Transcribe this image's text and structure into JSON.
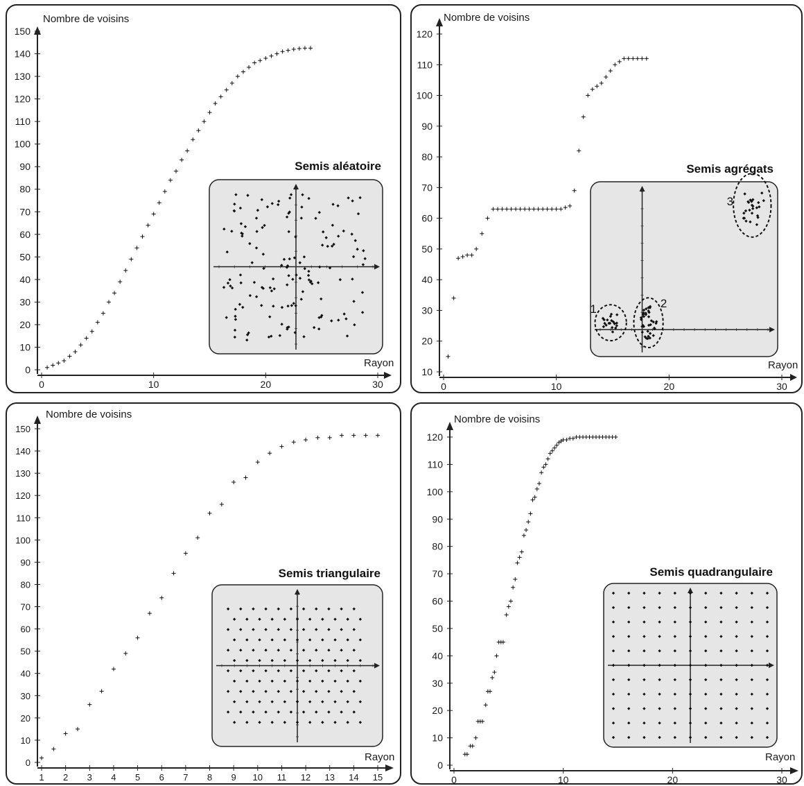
{
  "chart_data": [
    {
      "type": "scatter",
      "ylabel": "Nombre de voisins",
      "xlabel": "Rayon",
      "xlim": [
        0,
        30
      ],
      "ylim": [
        0,
        150
      ],
      "xticks": [
        "0",
        "10",
        "20",
        "30"
      ],
      "yticks": [
        "0",
        "10",
        "20",
        "30",
        "40",
        "50",
        "60",
        "70",
        "80",
        "90",
        "100",
        "110",
        "120",
        "130",
        "140",
        "150"
      ],
      "inset": {
        "title": "Semis aléatoire",
        "pattern": "random",
        "x_range": [
          -10,
          10
        ],
        "y_range": [
          -10,
          10
        ]
      },
      "series": [
        {
          "points": [
            [
              0.5,
              1
            ],
            [
              1,
              2
            ],
            [
              1.5,
              3
            ],
            [
              2,
              4
            ],
            [
              2.5,
              6
            ],
            [
              3,
              8
            ],
            [
              3.5,
              11
            ],
            [
              4,
              14
            ],
            [
              4.5,
              17
            ],
            [
              5,
              21
            ],
            [
              5.5,
              25
            ],
            [
              6,
              30
            ],
            [
              6.5,
              34
            ],
            [
              7,
              39
            ],
            [
              7.5,
              44
            ],
            [
              8,
              49
            ],
            [
              8.5,
              54
            ],
            [
              9,
              59
            ],
            [
              9.5,
              64
            ],
            [
              10,
              69
            ],
            [
              10.5,
              74
            ],
            [
              11,
              79
            ],
            [
              11.5,
              84
            ],
            [
              12,
              88
            ],
            [
              12.5,
              93
            ],
            [
              13,
              97
            ],
            [
              13.5,
              102
            ],
            [
              14,
              106
            ],
            [
              14.5,
              110
            ],
            [
              15,
              114
            ],
            [
              15.5,
              118
            ],
            [
              16,
              121
            ],
            [
              16.5,
              124
            ],
            [
              17,
              127
            ],
            [
              17.5,
              130
            ],
            [
              18,
              132
            ],
            [
              18.5,
              134
            ],
            [
              19,
              136
            ],
            [
              19.5,
              137
            ],
            [
              20,
              138
            ],
            [
              20.5,
              139
            ],
            [
              21,
              140
            ],
            [
              21.5,
              141
            ],
            [
              22,
              141.5
            ],
            [
              22.5,
              142
            ],
            [
              23,
              142.3
            ],
            [
              23.5,
              142.5
            ],
            [
              24,
              142.5
            ]
          ]
        }
      ]
    },
    {
      "type": "scatter",
      "ylabel": "Nombre de voisins",
      "xlabel": "Rayon",
      "xlim": [
        0,
        30
      ],
      "ylim": [
        10,
        120
      ],
      "xticks": [
        "0",
        "10",
        "20",
        "30"
      ],
      "yticks": [
        "10",
        "20",
        "30",
        "40",
        "50",
        "60",
        "70",
        "80",
        "90",
        "100",
        "110",
        "120"
      ],
      "inset": {
        "title": "Semis agrégats",
        "pattern": "clusters",
        "x_range": [
          -4,
          12
        ],
        "y_range": [
          -1,
          8
        ],
        "cluster_labels": [
          "1",
          "2",
          "3"
        ]
      },
      "series": [
        {
          "points": [
            [
              0.4,
              15
            ],
            [
              0.9,
              34
            ],
            [
              1.3,
              47
            ],
            [
              1.7,
              47.5
            ],
            [
              2.1,
              48
            ],
            [
              2.5,
              48
            ],
            [
              2.9,
              50
            ],
            [
              3.4,
              55
            ],
            [
              3.9,
              60
            ],
            [
              4.4,
              63
            ],
            [
              4.8,
              63
            ],
            [
              5.2,
              63
            ],
            [
              5.6,
              63
            ],
            [
              6.0,
              63
            ],
            [
              6.4,
              63
            ],
            [
              6.8,
              63
            ],
            [
              7.2,
              63
            ],
            [
              7.6,
              63
            ],
            [
              8.0,
              63
            ],
            [
              8.4,
              63
            ],
            [
              8.8,
              63
            ],
            [
              9.2,
              63
            ],
            [
              9.6,
              63
            ],
            [
              10.0,
              63
            ],
            [
              10.4,
              63
            ],
            [
              10.8,
              63.5
            ],
            [
              11.2,
              64
            ],
            [
              11.6,
              69
            ],
            [
              12.0,
              82
            ],
            [
              12.4,
              93
            ],
            [
              12.8,
              100
            ],
            [
              13.2,
              102
            ],
            [
              13.6,
              103
            ],
            [
              14.0,
              104
            ],
            [
              14.4,
              106
            ],
            [
              14.8,
              108
            ],
            [
              15.2,
              110
            ],
            [
              15.6,
              111
            ],
            [
              16.0,
              112
            ],
            [
              16.4,
              112
            ],
            [
              16.8,
              112
            ],
            [
              17.2,
              112
            ],
            [
              17.6,
              112
            ],
            [
              18.0,
              112
            ]
          ]
        }
      ]
    },
    {
      "type": "scatter",
      "ylabel": "Nombre de voisins",
      "xlabel": "Rayon",
      "xlim": [
        1,
        15
      ],
      "ylim": [
        0,
        150
      ],
      "xticks": [
        "1",
        "2",
        "3",
        "4",
        "5",
        "6",
        "7",
        "8",
        "9",
        "10",
        "11",
        "12",
        "13",
        "14",
        "15"
      ],
      "yticks": [
        "0",
        "10",
        "20",
        "30",
        "40",
        "50",
        "60",
        "70",
        "80",
        "90",
        "100",
        "110",
        "120",
        "130",
        "140",
        "150"
      ],
      "inset": {
        "title": "Semis triangulaire",
        "pattern": "triangular",
        "x_range": [
          -6,
          6
        ],
        "y_range": [
          -6,
          6
        ]
      },
      "series": [
        {
          "points": [
            [
              1,
              2
            ],
            [
              1.5,
              6
            ],
            [
              2,
              13
            ],
            [
              2.5,
              15
            ],
            [
              3,
              26
            ],
            [
              3.5,
              32
            ],
            [
              4,
              42
            ],
            [
              4.5,
              49
            ],
            [
              5,
              56
            ],
            [
              5.5,
              67
            ],
            [
              6,
              74
            ],
            [
              6.5,
              85
            ],
            [
              7,
              94
            ],
            [
              7.5,
              101
            ],
            [
              8,
              112
            ],
            [
              8.5,
              116
            ],
            [
              9,
              126
            ],
            [
              9.5,
              128
            ],
            [
              10,
              135
            ],
            [
              10.5,
              139
            ],
            [
              11,
              142
            ],
            [
              11.5,
              144
            ],
            [
              12,
              145
            ],
            [
              12.5,
              146
            ],
            [
              13,
              146
            ],
            [
              13.5,
              147
            ],
            [
              14,
              147
            ],
            [
              14.5,
              147
            ],
            [
              15,
              147
            ]
          ]
        }
      ]
    },
    {
      "type": "scatter",
      "ylabel": "Nombre de voisins",
      "xlabel": "Rayon",
      "xlim": [
        0,
        30
      ],
      "ylim": [
        0,
        120
      ],
      "xticks": [
        "0",
        "10",
        "20",
        "30"
      ],
      "yticks": [
        "0",
        "10",
        "20",
        "30",
        "40",
        "50",
        "60",
        "70",
        "80",
        "90",
        "100",
        "110",
        "120"
      ],
      "inset": {
        "title": "Semis quadrangulaire",
        "pattern": "square",
        "x_range": [
          -5,
          5
        ],
        "y_range": [
          -5,
          5
        ]
      },
      "series": [
        {
          "points": [
            [
              1,
              4
            ],
            [
              1.2,
              4
            ],
            [
              1.5,
              7
            ],
            [
              1.7,
              7
            ],
            [
              2,
              10
            ],
            [
              2.2,
              16
            ],
            [
              2.4,
              16
            ],
            [
              2.6,
              16
            ],
            [
              2.9,
              22
            ],
            [
              3.1,
              27
            ],
            [
              3.3,
              27
            ],
            [
              3.5,
              32
            ],
            [
              3.7,
              34
            ],
            [
              3.9,
              40
            ],
            [
              4.1,
              45
            ],
            [
              4.3,
              45
            ],
            [
              4.5,
              45
            ],
            [
              4.8,
              55
            ],
            [
              5.0,
              58
            ],
            [
              5.2,
              60
            ],
            [
              5.4,
              65
            ],
            [
              5.6,
              68
            ],
            [
              5.8,
              74
            ],
            [
              6.0,
              76
            ],
            [
              6.2,
              78
            ],
            [
              6.4,
              84
            ],
            [
              6.6,
              86
            ],
            [
              6.8,
              89
            ],
            [
              7.0,
              92
            ],
            [
              7.2,
              97
            ],
            [
              7.4,
              98
            ],
            [
              7.6,
              101
            ],
            [
              7.8,
              103
            ],
            [
              8.0,
              107
            ],
            [
              8.2,
              109
            ],
            [
              8.4,
              110
            ],
            [
              8.6,
              112
            ],
            [
              8.8,
              114
            ],
            [
              9.0,
              115
            ],
            [
              9.2,
              116
            ],
            [
              9.4,
              117
            ],
            [
              9.6,
              118
            ],
            [
              9.8,
              118.5
            ],
            [
              10.0,
              119
            ],
            [
              10.3,
              119
            ],
            [
              10.6,
              119.5
            ],
            [
              10.9,
              119.5
            ],
            [
              11.2,
              120
            ],
            [
              11.5,
              120
            ],
            [
              11.8,
              120
            ],
            [
              12.1,
              120
            ],
            [
              12.4,
              120
            ],
            [
              12.7,
              120
            ],
            [
              13.0,
              120
            ],
            [
              13.3,
              120
            ],
            [
              13.6,
              120
            ],
            [
              13.9,
              120
            ],
            [
              14.2,
              120
            ],
            [
              14.5,
              120
            ],
            [
              14.8,
              120
            ]
          ]
        }
      ]
    }
  ]
}
